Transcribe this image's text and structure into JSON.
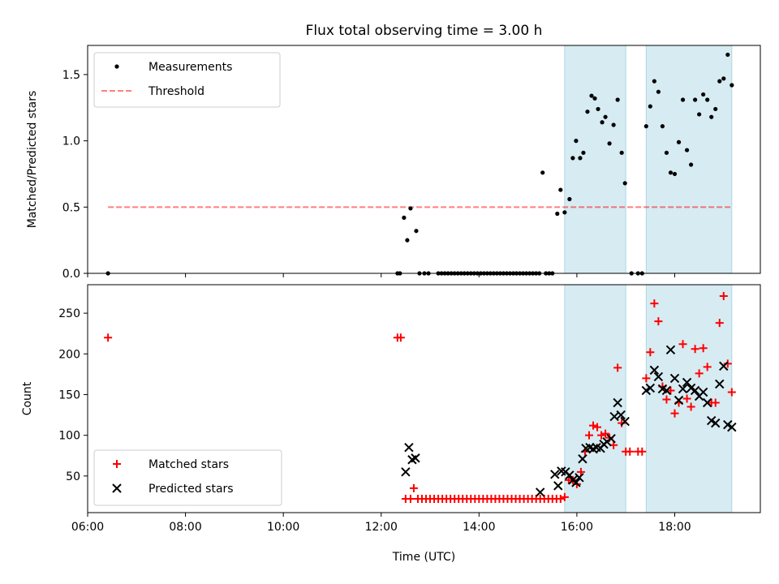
{
  "chart_data": [
    {
      "type": "scatter",
      "title": "Flux total observing time = 3.00 h",
      "xlabel": "",
      "ylabel": "Matched/Predicted stars",
      "xlim": [
        "06:00",
        "19:45"
      ],
      "ylim": [
        0,
        1.72
      ],
      "yticks": [
        0.0,
        0.5,
        1.0,
        1.5
      ],
      "ytick_labels": [
        "0.0",
        "0.5",
        "1.0",
        "1.5"
      ],
      "legend": {
        "position": "top-left",
        "entries": [
          "Measurements",
          "Threshold"
        ]
      },
      "shaded_intervals": [
        [
          "15:45",
          "17:00"
        ],
        [
          "17:25",
          "19:10"
        ]
      ],
      "threshold": {
        "y": 0.5,
        "x_range": [
          "06:25",
          "19:10"
        ]
      },
      "series": [
        {
          "name": "Measurements",
          "color": "#000000",
          "marker": "dot",
          "points": [
            [
              "06:25",
              0.0
            ],
            [
              "12:20",
              0.0
            ],
            [
              "12:23",
              0.0
            ],
            [
              "12:28",
              0.42
            ],
            [
              "12:32",
              0.25
            ],
            [
              "12:36",
              0.49
            ],
            [
              "12:43",
              0.32
            ],
            [
              "12:47",
              0.0
            ],
            [
              "12:53",
              0.0
            ],
            [
              "12:58",
              0.0
            ],
            [
              "13:10",
              0.0
            ],
            [
              "13:14",
              0.0
            ],
            [
              "13:18",
              0.0
            ],
            [
              "13:22",
              0.0
            ],
            [
              "13:26",
              0.0
            ],
            [
              "13:30",
              0.0
            ],
            [
              "13:34",
              0.0
            ],
            [
              "13:38",
              0.0
            ],
            [
              "13:42",
              0.0
            ],
            [
              "13:46",
              0.0
            ],
            [
              "13:50",
              0.0
            ],
            [
              "13:54",
              0.0
            ],
            [
              "13:58",
              0.0
            ],
            [
              "14:02",
              0.0
            ],
            [
              "14:06",
              0.0
            ],
            [
              "14:10",
              0.0
            ],
            [
              "14:14",
              0.0
            ],
            [
              "14:18",
              0.0
            ],
            [
              "14:22",
              0.0
            ],
            [
              "14:26",
              0.0
            ],
            [
              "14:30",
              0.0
            ],
            [
              "14:34",
              0.0
            ],
            [
              "14:38",
              0.0
            ],
            [
              "14:42",
              0.0
            ],
            [
              "14:46",
              0.0
            ],
            [
              "14:50",
              0.0
            ],
            [
              "14:54",
              0.0
            ],
            [
              "14:58",
              0.0
            ],
            [
              "15:02",
              0.0
            ],
            [
              "15:06",
              0.0
            ],
            [
              "15:10",
              0.0
            ],
            [
              "15:14",
              0.0
            ],
            [
              "15:18",
              0.76
            ],
            [
              "15:22",
              0.0
            ],
            [
              "15:26",
              0.0
            ],
            [
              "15:30",
              0.0
            ],
            [
              "15:36",
              0.45
            ],
            [
              "15:40",
              0.63
            ],
            [
              "15:45",
              0.46
            ],
            [
              "15:51",
              0.56
            ],
            [
              "15:55",
              0.87
            ],
            [
              "15:59",
              1.0
            ],
            [
              "16:04",
              0.87
            ],
            [
              "16:08",
              0.91
            ],
            [
              "16:13",
              1.22
            ],
            [
              "16:18",
              1.34
            ],
            [
              "16:22",
              1.32
            ],
            [
              "16:26",
              1.24
            ],
            [
              "16:31",
              1.14
            ],
            [
              "16:35",
              1.18
            ],
            [
              "16:40",
              0.98
            ],
            [
              "16:45",
              1.12
            ],
            [
              "16:50",
              1.31
            ],
            [
              "16:55",
              0.91
            ],
            [
              "16:59",
              0.68
            ],
            [
              "17:07",
              0.0
            ],
            [
              "17:15",
              0.0
            ],
            [
              "17:20",
              0.0
            ],
            [
              "17:25",
              1.11
            ],
            [
              "17:30",
              1.26
            ],
            [
              "17:35",
              1.45
            ],
            [
              "17:40",
              1.37
            ],
            [
              "17:45",
              1.11
            ],
            [
              "17:50",
              0.91
            ],
            [
              "17:55",
              0.76
            ],
            [
              "18:00",
              0.75
            ],
            [
              "18:05",
              0.99
            ],
            [
              "18:10",
              1.31
            ],
            [
              "18:15",
              0.93
            ],
            [
              "18:20",
              0.82
            ],
            [
              "18:25",
              1.31
            ],
            [
              "18:30",
              1.2
            ],
            [
              "18:35",
              1.35
            ],
            [
              "18:40",
              1.31
            ],
            [
              "18:45",
              1.18
            ],
            [
              "18:50",
              1.24
            ],
            [
              "18:55",
              1.45
            ],
            [
              "19:00",
              1.47
            ],
            [
              "19:05",
              1.65
            ],
            [
              "19:10",
              1.42
            ]
          ]
        }
      ]
    },
    {
      "type": "scatter",
      "title": "",
      "xlabel": "Time (UTC)",
      "ylabel": "Count",
      "xlim": [
        "06:00",
        "19:45"
      ],
      "ylim": [
        5,
        285
      ],
      "yticks": [
        50,
        100,
        150,
        200,
        250
      ],
      "xticks": [
        "06:00",
        "08:00",
        "10:00",
        "12:00",
        "14:00",
        "16:00",
        "18:00"
      ],
      "legend": {
        "position": "bottom-left",
        "entries": [
          "Matched stars",
          "Predicted stars"
        ]
      },
      "shaded_intervals": [
        [
          "15:45",
          "17:00"
        ],
        [
          "17:25",
          "19:10"
        ]
      ],
      "series": [
        {
          "name": "Matched stars",
          "color": "#ff0000",
          "marker": "plus",
          "points": [
            [
              "06:25",
              220
            ],
            [
              "12:20",
              220
            ],
            [
              "12:24",
              220
            ],
            [
              "12:30",
              22
            ],
            [
              "12:36",
              22
            ],
            [
              "12:40",
              35
            ],
            [
              "12:45",
              22
            ],
            [
              "12:50",
              22
            ],
            [
              "12:55",
              22
            ],
            [
              "13:00",
              22
            ],
            [
              "13:05",
              22
            ],
            [
              "13:10",
              22
            ],
            [
              "13:15",
              22
            ],
            [
              "13:20",
              22
            ],
            [
              "13:25",
              22
            ],
            [
              "13:30",
              22
            ],
            [
              "13:35",
              22
            ],
            [
              "13:40",
              22
            ],
            [
              "13:45",
              22
            ],
            [
              "13:50",
              22
            ],
            [
              "13:55",
              22
            ],
            [
              "14:00",
              22
            ],
            [
              "14:05",
              22
            ],
            [
              "14:10",
              22
            ],
            [
              "14:15",
              22
            ],
            [
              "14:20",
              22
            ],
            [
              "14:25",
              22
            ],
            [
              "14:30",
              22
            ],
            [
              "14:35",
              22
            ],
            [
              "14:40",
              22
            ],
            [
              "14:45",
              22
            ],
            [
              "14:50",
              22
            ],
            [
              "14:55",
              22
            ],
            [
              "15:00",
              22
            ],
            [
              "15:05",
              22
            ],
            [
              "15:10",
              22
            ],
            [
              "15:15",
              22
            ],
            [
              "15:20",
              22
            ],
            [
              "15:25",
              22
            ],
            [
              "15:30",
              22
            ],
            [
              "15:35",
              22
            ],
            [
              "15:40",
              22
            ],
            [
              "15:45",
              24
            ],
            [
              "15:50",
              45
            ],
            [
              "15:55",
              45
            ],
            [
              "16:00",
              40
            ],
            [
              "16:05",
              55
            ],
            [
              "16:10",
              80
            ],
            [
              "16:15",
              100
            ],
            [
              "16:20",
              112
            ],
            [
              "16:25",
              110
            ],
            [
              "16:30",
              100
            ],
            [
              "16:35",
              102
            ],
            [
              "16:40",
              97
            ],
            [
              "16:45",
              88
            ],
            [
              "16:50",
              183
            ],
            [
              "16:55",
              115
            ],
            [
              "17:00",
              80
            ],
            [
              "17:05",
              80
            ],
            [
              "17:15",
              80
            ],
            [
              "17:20",
              80
            ],
            [
              "17:25",
              170
            ],
            [
              "17:30",
              202
            ],
            [
              "17:35",
              262
            ],
            [
              "17:40",
              240
            ],
            [
              "17:45",
              160
            ],
            [
              "17:50",
              144
            ],
            [
              "17:55",
              155
            ],
            [
              "18:00",
              127
            ],
            [
              "18:05",
              140
            ],
            [
              "18:10",
              212
            ],
            [
              "18:15",
              145
            ],
            [
              "18:20",
              135
            ],
            [
              "18:25",
              206
            ],
            [
              "18:30",
              176
            ],
            [
              "18:35",
              207
            ],
            [
              "18:40",
              184
            ],
            [
              "18:45",
              140
            ],
            [
              "18:50",
              140
            ],
            [
              "18:55",
              238
            ],
            [
              "19:00",
              271
            ],
            [
              "19:05",
              188
            ],
            [
              "19:10",
              153
            ]
          ]
        },
        {
          "name": "Predicted stars",
          "color": "#000000",
          "marker": "x",
          "points": [
            [
              "12:30",
              55
            ],
            [
              "12:34",
              85
            ],
            [
              "12:38",
              70
            ],
            [
              "12:42",
              72
            ],
            [
              "15:15",
              30
            ],
            [
              "15:33",
              52
            ],
            [
              "15:37",
              38
            ],
            [
              "15:41",
              56
            ],
            [
              "15:46",
              55
            ],
            [
              "15:51",
              51
            ],
            [
              "15:55",
              45
            ],
            [
              "15:59",
              42
            ],
            [
              "16:03",
              48
            ],
            [
              "16:07",
              71
            ],
            [
              "16:11",
              84
            ],
            [
              "16:16",
              85
            ],
            [
              "16:20",
              83
            ],
            [
              "16:24",
              85
            ],
            [
              "16:29",
              84
            ],
            [
              "16:33",
              89
            ],
            [
              "16:37",
              92
            ],
            [
              "16:42",
              96
            ],
            [
              "16:46",
              123
            ],
            [
              "16:50",
              140
            ],
            [
              "16:54",
              125
            ],
            [
              "16:59",
              117
            ],
            [
              "17:25",
              155
            ],
            [
              "17:30",
              158
            ],
            [
              "17:35",
              180
            ],
            [
              "17:40",
              172
            ],
            [
              "17:45",
              157
            ],
            [
              "17:50",
              155
            ],
            [
              "17:55",
              205
            ],
            [
              "18:00",
              170
            ],
            [
              "18:05",
              143
            ],
            [
              "18:10",
              157
            ],
            [
              "18:15",
              165
            ],
            [
              "18:20",
              158
            ],
            [
              "18:25",
              155
            ],
            [
              "18:30",
              148
            ],
            [
              "18:35",
              153
            ],
            [
              "18:40",
              140
            ],
            [
              "18:45",
              118
            ],
            [
              "18:50",
              115
            ],
            [
              "18:55",
              163
            ],
            [
              "19:00",
              185
            ],
            [
              "19:05",
              113
            ],
            [
              "19:10",
              110
            ]
          ]
        }
      ]
    }
  ]
}
